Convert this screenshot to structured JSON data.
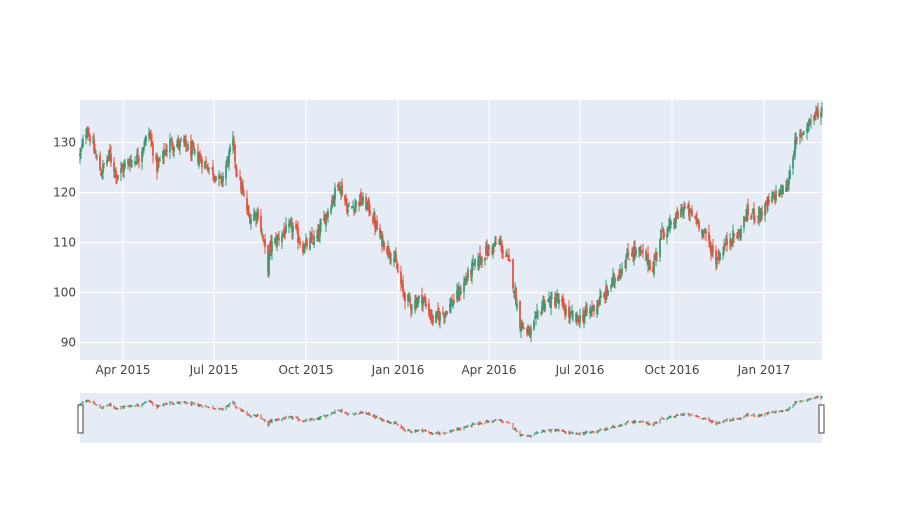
{
  "chart_data": {
    "type": "candlestick",
    "x_axis": {
      "type": "date",
      "range": [
        "2015-02-17",
        "2017-02-28"
      ],
      "tick_labels": [
        "Apr 2015",
        "Jul 2015",
        "Oct 2015",
        "Jan 2016",
        "Apr 2016",
        "Jul 2016",
        "Oct 2016",
        "Jan 2017"
      ],
      "tick_dates": [
        "2015-04-01",
        "2015-07-01",
        "2015-10-01",
        "2016-01-01",
        "2016-04-01",
        "2016-07-01",
        "2016-10-01",
        "2017-01-01"
      ]
    },
    "y_axis": {
      "range": [
        86.5,
        138.5
      ],
      "ticks": [
        90,
        100,
        110,
        120,
        130
      ],
      "tick_labels": [
        "90",
        "100",
        "110",
        "120",
        "130"
      ]
    },
    "grid": true,
    "rangeslider": true,
    "colors": {
      "increasing": "#3D9970",
      "decreasing": "#E7533F",
      "plot_background": "#E5ECF6",
      "grid": "#ffffff"
    },
    "close_anchors": [
      [
        "2015-02-17",
        127.5
      ],
      [
        "2015-02-24",
        133.0
      ],
      [
        "2015-03-02",
        129.0
      ],
      [
        "2015-03-10",
        124.0
      ],
      [
        "2015-03-18",
        127.5
      ],
      [
        "2015-03-26",
        123.5
      ],
      [
        "2015-04-06",
        126.0
      ],
      [
        "2015-04-16",
        127.0
      ],
      [
        "2015-04-27",
        132.0
      ],
      [
        "2015-05-05",
        125.0
      ],
      [
        "2015-05-18",
        130.0
      ],
      [
        "2015-06-01",
        129.5
      ],
      [
        "2015-06-15",
        127.0
      ],
      [
        "2015-06-29",
        124.5
      ],
      [
        "2015-07-08",
        122.0
      ],
      [
        "2015-07-20",
        130.0
      ],
      [
        "2015-07-23",
        125.0
      ],
      [
        "2015-08-05",
        115.0
      ],
      [
        "2015-08-14",
        116.0
      ],
      [
        "2015-08-24",
        105.0
      ],
      [
        "2015-08-26",
        109.0
      ],
      [
        "2015-09-08",
        112.0
      ],
      [
        "2015-09-18",
        113.0
      ],
      [
        "2015-09-28",
        109.0
      ],
      [
        "2015-10-12",
        111.0
      ],
      [
        "2015-10-22",
        116.0
      ],
      [
        "2015-11-03",
        122.0
      ],
      [
        "2015-11-12",
        116.5
      ],
      [
        "2015-11-24",
        118.5
      ],
      [
        "2015-12-03",
        117.0
      ],
      [
        "2015-12-14",
        111.0
      ],
      [
        "2015-12-28",
        107.0
      ],
      [
        "2016-01-06",
        100.0
      ],
      [
        "2016-01-14",
        97.5
      ],
      [
        "2016-01-25",
        99.0
      ],
      [
        "2016-02-05",
        94.5
      ],
      [
        "2016-02-16",
        96.0
      ],
      [
        "2016-03-01",
        99.5
      ],
      [
        "2016-03-14",
        104.5
      ],
      [
        "2016-03-28",
        108.0
      ],
      [
        "2016-04-11",
        110.0
      ],
      [
        "2016-04-22",
        105.5
      ],
      [
        "2016-05-02",
        94.0
      ],
      [
        "2016-05-12",
        91.5
      ],
      [
        "2016-05-25",
        98.0
      ],
      [
        "2016-06-08",
        98.5
      ],
      [
        "2016-06-22",
        95.0
      ],
      [
        "2016-06-28",
        94.5
      ],
      [
        "2016-07-12",
        96.5
      ],
      [
        "2016-07-26",
        99.5
      ],
      [
        "2016-08-08",
        104.0
      ],
      [
        "2016-08-22",
        108.5
      ],
      [
        "2016-09-02",
        107.5
      ],
      [
        "2016-09-12",
        105.0
      ],
      [
        "2016-09-20",
        112.0
      ],
      [
        "2016-09-30",
        113.0
      ],
      [
        "2016-10-12",
        117.0
      ],
      [
        "2016-10-26",
        114.5
      ],
      [
        "2016-11-07",
        110.0
      ],
      [
        "2016-11-14",
        106.5
      ],
      [
        "2016-11-28",
        111.0
      ],
      [
        "2016-12-07",
        111.5
      ],
      [
        "2016-12-14",
        115.5
      ],
      [
        "2016-12-30",
        116.0
      ],
      [
        "2017-01-12",
        119.5
      ],
      [
        "2017-01-24",
        121.0
      ],
      [
        "2017-01-31",
        129.0
      ],
      [
        "2017-02-14",
        134.0
      ],
      [
        "2017-02-24",
        136.0
      ]
    ]
  }
}
